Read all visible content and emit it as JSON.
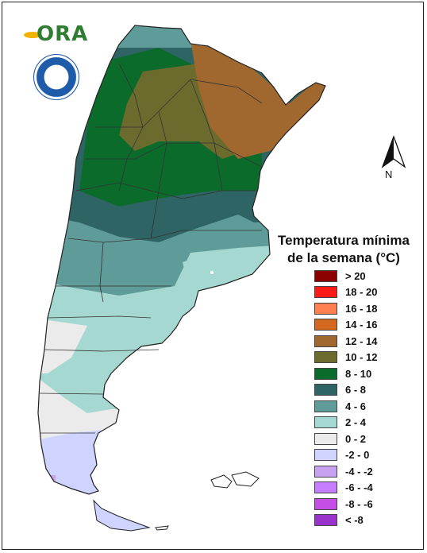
{
  "branding": {
    "logo_text": "ORA",
    "seal_icon": "smn-seal-icon"
  },
  "compass": {
    "north_label": "N"
  },
  "legend": {
    "title_line1": "Temperatura mínima",
    "title_line2": "de la semana (°C)",
    "items": [
      {
        "label": "> 20",
        "color": "#8b0000"
      },
      {
        "label": "18 - 20",
        "color": "#ff1a1a"
      },
      {
        "label": "16 - 18",
        "color": "#ff7f50"
      },
      {
        "label": "14 - 16",
        "color": "#d2691e"
      },
      {
        "label": "12 - 14",
        "color": "#a0672f"
      },
      {
        "label": "10 - 12",
        "color": "#6b6b2e"
      },
      {
        "label": "8 - 10",
        "color": "#0b6b2a"
      },
      {
        "label": "6 - 8",
        "color": "#2f6464"
      },
      {
        "label": "4 - 6",
        "color": "#5f9b98"
      },
      {
        "label": "2 - 4",
        "color": "#a5d8d0"
      },
      {
        "label": "0 - 2",
        "color": "#ebebeb"
      },
      {
        "label": "-2 - 0",
        "color": "#cfd3ff"
      },
      {
        "label": "-4 - -2",
        "color": "#c8a2f0"
      },
      {
        "label": "-6 - -4",
        "color": "#c77dff"
      },
      {
        "label": "-8 - -6",
        "color": "#c44ee6"
      },
      {
        "label": "< -8",
        "color": "#9933cc"
      }
    ]
  }
}
